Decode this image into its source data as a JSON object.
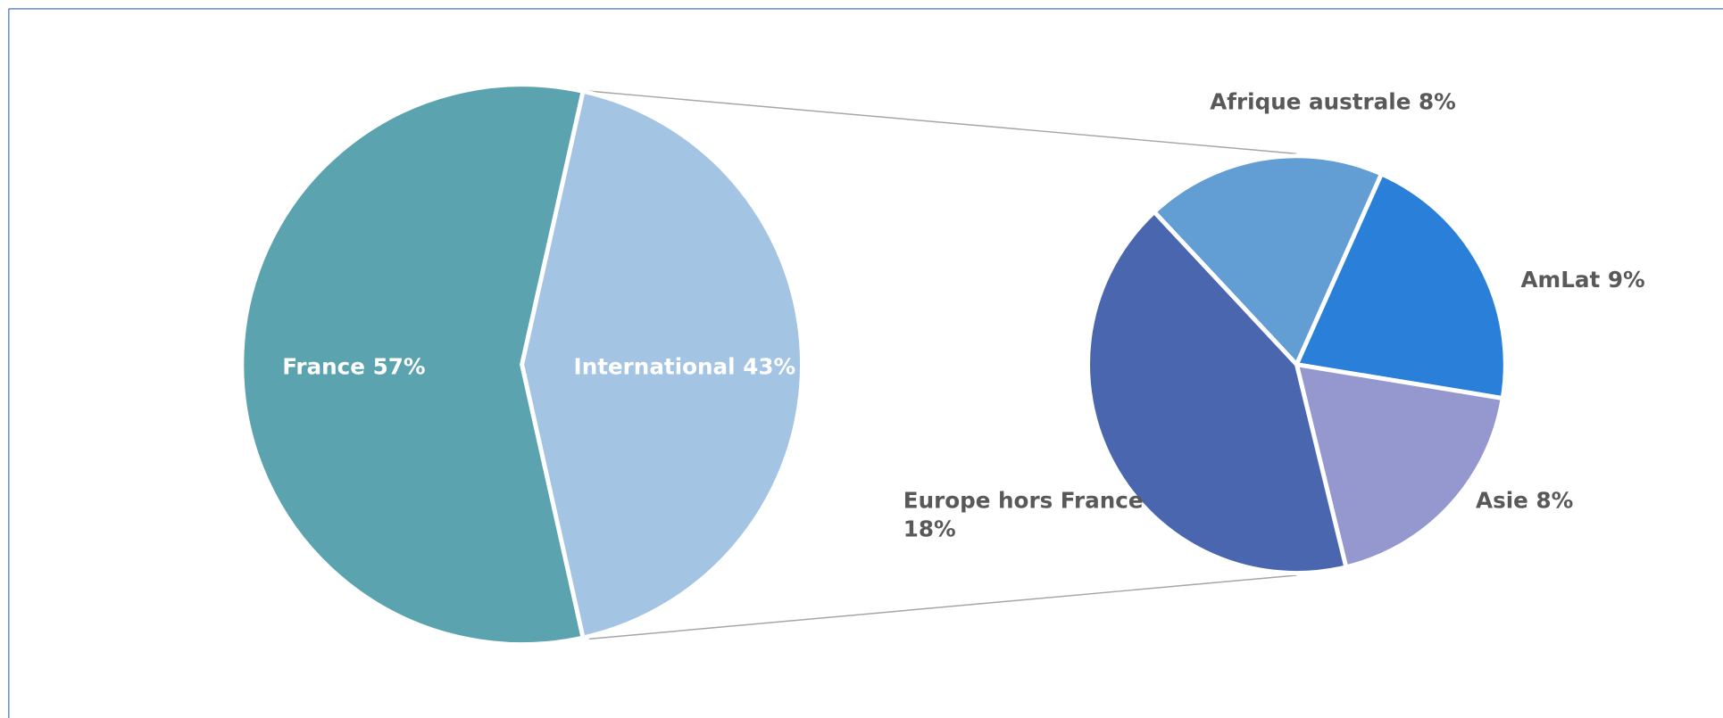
{
  "chart_data": [
    {
      "type": "pie",
      "categories": [
        "France",
        "International"
      ],
      "values": [
        57,
        43
      ],
      "value_labels": [
        "57%",
        "43%"
      ],
      "colors": [
        "#5ba3ae",
        "#a3c4e3"
      ]
    },
    {
      "type": "pie",
      "categories": [
        "Afrique australe",
        "AmLat",
        "Asie",
        "Europe hors France"
      ],
      "values": [
        8,
        9,
        8,
        18
      ],
      "value_labels": [
        "8%",
        "9%",
        "8%",
        "18%"
      ],
      "colors": [
        "#629ed3",
        "#2a7fd8",
        "#9498cf",
        "#4a66ae"
      ]
    }
  ]
}
